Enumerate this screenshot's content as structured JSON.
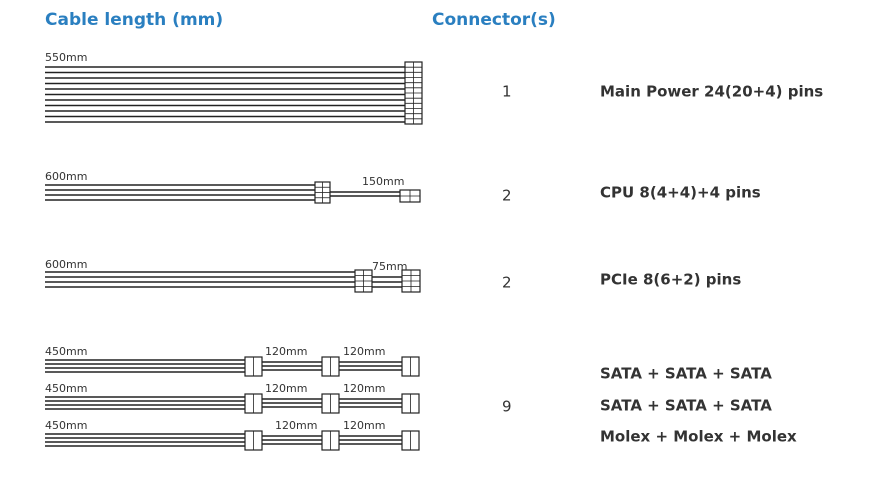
{
  "header": {
    "cable_length": "Cable length (mm)",
    "connectors": "Connector(s)"
  },
  "rows": [
    {
      "cables": [
        [
          "550mm"
        ]
      ],
      "count": 1,
      "names": [
        "Main Power 24(20+4) pins"
      ]
    },
    {
      "cables": [
        [
          "600mm",
          "150mm"
        ]
      ],
      "count": 2,
      "names": [
        "CPU 8(4+4)+4 pins"
      ]
    },
    {
      "cables": [
        [
          "600mm",
          "75mm"
        ]
      ],
      "count": 2,
      "names": [
        "PCIe 8(6+2) pins"
      ]
    },
    {
      "cables": [
        [
          "450mm",
          "120mm",
          "120mm"
        ],
        [
          "450mm",
          "120mm",
          "120mm"
        ],
        [
          "450mm",
          "120mm",
          "120mm"
        ]
      ],
      "count": 9,
      "names": [
        "SATA + SATA + SATA",
        "SATA + SATA + SATA",
        "Molex + Molex + Molex"
      ]
    }
  ]
}
